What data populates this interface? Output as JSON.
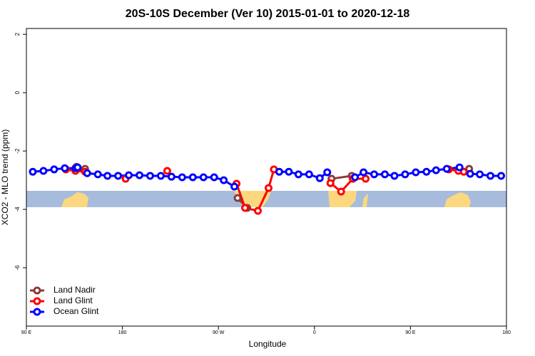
{
  "chart_data": {
    "type": "line",
    "title": "20S-10S December (Ver 10)   2015-01-01 to 2020-12-18",
    "x_label": "Longitude",
    "y_label": "XCO2 - MLO trend (ppm)",
    "xlim": [
      90,
      540
    ],
    "ylim": [
      -8,
      2.2
    ],
    "xticks": [
      {
        "value": 90,
        "label": "90 E"
      },
      180,
      {
        "value": 270,
        "label": "90 W"
      },
      {
        "value": 360,
        "label": "0"
      },
      {
        "value": 450,
        "label": "90 E"
      },
      {
        "value": 540,
        "label": "180"
      }
    ],
    "yticks": [
      2,
      0,
      -2,
      -4,
      -6
    ],
    "legend": "bottom-left",
    "series": [
      {
        "name": "Land Nadir",
        "color": "#8b3a3a",
        "x": [
          137,
          145,
          null,
          288,
          297,
          null,
          376,
          395,
          null,
          505
        ],
        "values": [
          -2.54,
          -2.61,
          null,
          -3.61,
          -3.95,
          null,
          -2.95,
          -2.85,
          null,
          -2.61
        ]
      },
      {
        "name": "Land Glint",
        "color": "#ff0000",
        "x": [
          127,
          136,
          145,
          null,
          183,
          null,
          222,
          null,
          287,
          295,
          307,
          317,
          322,
          null,
          375,
          385,
          396,
          408,
          null,
          486,
          495,
          500
        ],
        "values": [
          -2.63,
          -2.68,
          -2.71,
          null,
          -2.95,
          null,
          -2.68,
          null,
          -3.12,
          -3.95,
          -4.05,
          -3.27,
          -2.63,
          null,
          -3.1,
          -3.39,
          -2.95,
          -2.95,
          null,
          -2.63,
          -2.68,
          -2.71
        ]
      },
      {
        "name": "Ocean Glint",
        "color": "#0000ff",
        "x": [
          96,
          106,
          116,
          126,
          136,
          138,
          147,
          157,
          166,
          176,
          186,
          196,
          206,
          216,
          226,
          236,
          246,
          256,
          266,
          275,
          285,
          null,
          327,
          336,
          345,
          355,
          365,
          372,
          null,
          398,
          406,
          416,
          426,
          435,
          445,
          455,
          465,
          474,
          484,
          496,
          506,
          515,
          525,
          535
        ],
        "values": [
          -2.71,
          -2.68,
          -2.63,
          -2.59,
          -2.59,
          -2.56,
          -2.76,
          -2.8,
          -2.85,
          -2.85,
          -2.83,
          -2.83,
          -2.85,
          -2.85,
          -2.88,
          -2.9,
          -2.9,
          -2.9,
          -2.9,
          -3.0,
          -3.22,
          null,
          -2.71,
          -2.71,
          -2.8,
          -2.8,
          -2.93,
          -2.73,
          null,
          -2.9,
          -2.73,
          -2.8,
          -2.8,
          -2.85,
          -2.8,
          -2.73,
          -2.71,
          -2.66,
          -2.61,
          -2.56,
          -2.78,
          -2.8,
          -2.85,
          -2.85
        ]
      }
    ]
  }
}
